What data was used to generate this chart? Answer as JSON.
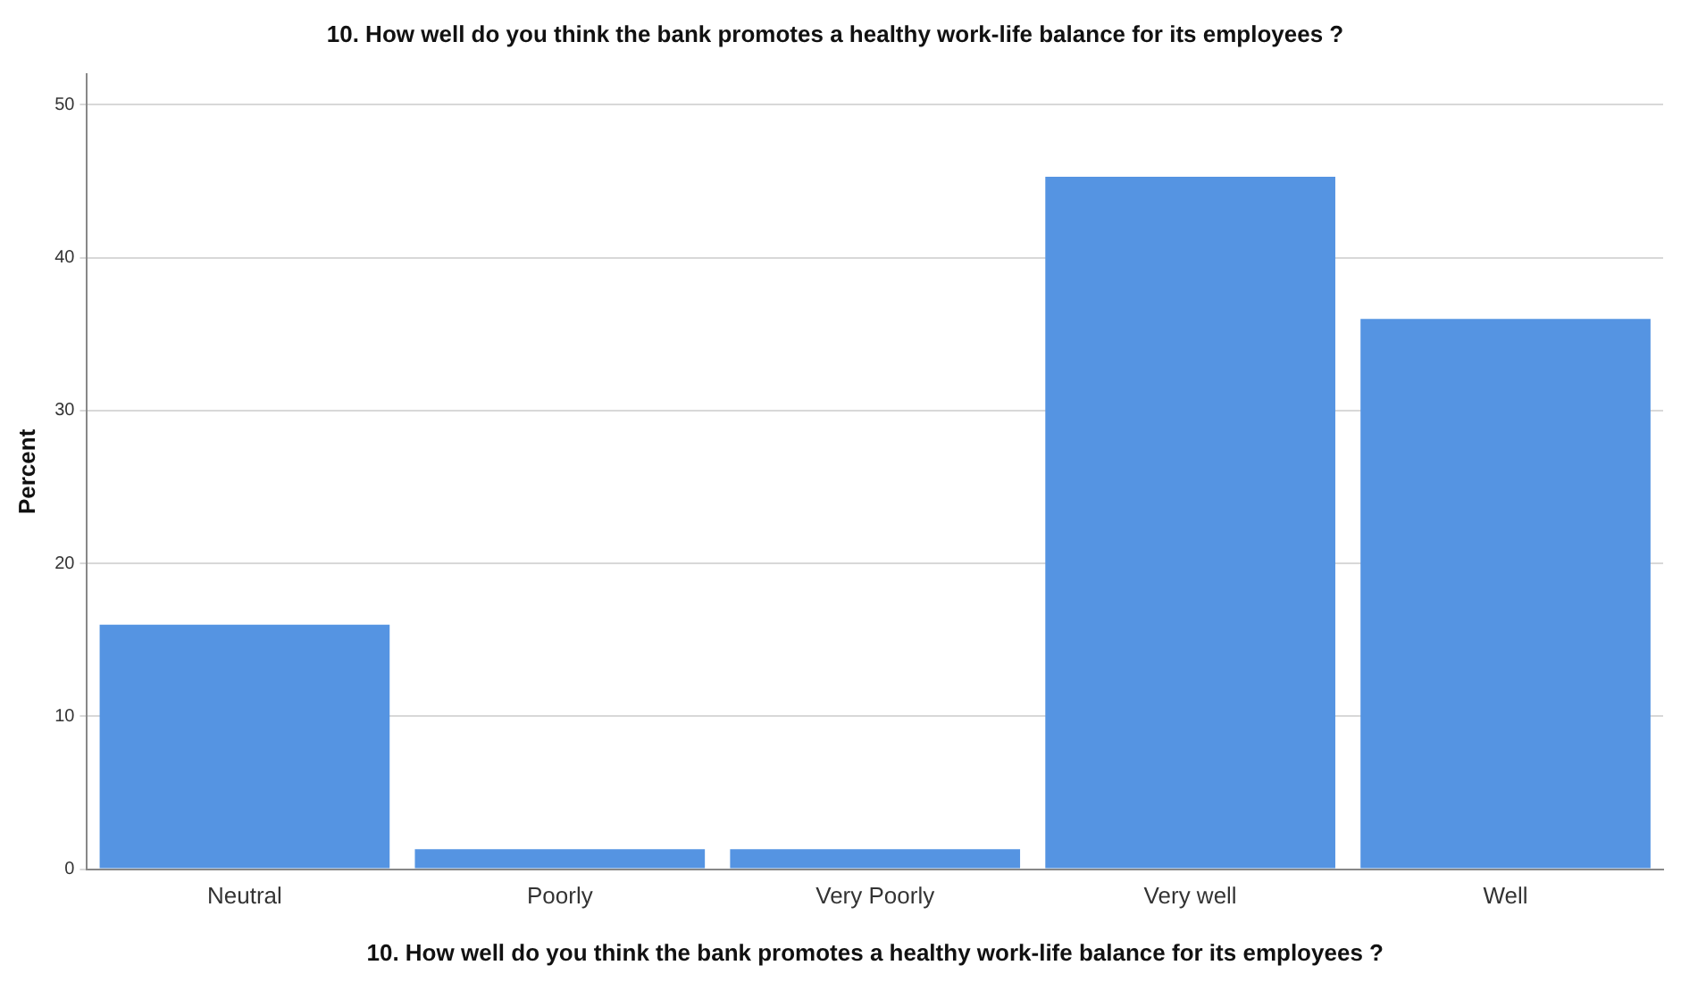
{
  "chart_data": {
    "type": "bar",
    "title": "10. How well do you think the bank promotes a healthy work-life balance for its employees ?",
    "xlabel": "10. How well do you think the bank promotes a healthy work-life balance for its employees ?",
    "ylabel": "Percent",
    "categories": [
      "Neutral",
      "Poorly",
      "Very Poorly",
      "Very well",
      "Well"
    ],
    "values": [
      16.0,
      1.3,
      1.3,
      45.3,
      36.0
    ],
    "color": "#5594e2",
    "ylim": [
      0,
      52
    ],
    "yticks": [
      0,
      10,
      20,
      30,
      40,
      50
    ],
    "grid": "y",
    "legend": false
  }
}
